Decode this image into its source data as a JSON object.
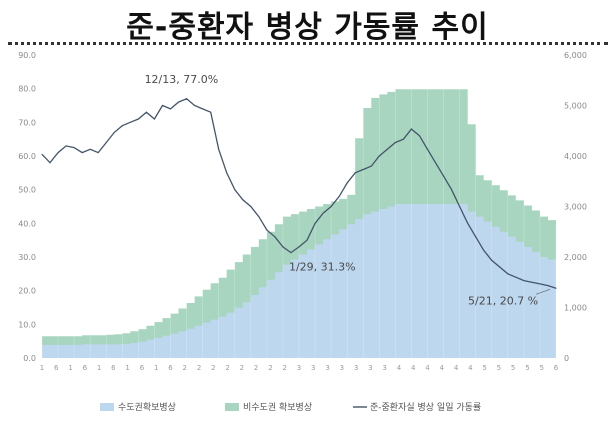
{
  "page": {
    "title": "준-중환자 병상 가동률 추이"
  },
  "chart_data": {
    "type": "area+line",
    "title": "준-중환자 병상 가동률 추이",
    "left_axis": {
      "min": 0,
      "max": 90,
      "ticks": [
        "0.0",
        "10.0",
        "20.0",
        "30.0",
        "40.0",
        "50.0",
        "60.0",
        "70.0",
        "80.0",
        "90.0"
      ]
    },
    "right_axis": {
      "min": 0,
      "max": 6000,
      "ticks": [
        "0",
        "1,000",
        "2,000",
        "3,000",
        "4,000",
        "5,000",
        "6,000"
      ]
    },
    "grid": false,
    "legend_position": "bottom",
    "legend": [
      "수도권확보병상",
      "비수도권 확보병상",
      "준-중환자실 병상 일일 가동률"
    ],
    "colors": {
      "capital_area": "#bdd7ee",
      "non_capital_area": "#a8d5bf",
      "utilization_line": "#44546a"
    },
    "series": [
      {
        "name": "수도권확보병상",
        "axis": "right",
        "kind": "stacked-area",
        "values": [
          260,
          260,
          260,
          260,
          260,
          270,
          270,
          270,
          270,
          270,
          280,
          300,
          320,
          360,
          400,
          440,
          480,
          530,
          580,
          640,
          700,
          760,
          820,
          900,
          1000,
          1100,
          1250,
          1400,
          1550,
          1700,
          1850,
          1950,
          2050,
          2150,
          2250,
          2350,
          2450,
          2550,
          2650,
          2750,
          2850,
          2900,
          2950,
          3000,
          3050,
          3050,
          3050,
          3050,
          3050,
          3050,
          3050,
          3050,
          3050,
          2900,
          2800,
          2700,
          2600,
          2500,
          2400,
          2300,
          2200,
          2100,
          2000,
          1950,
          1900
        ]
      },
      {
        "name": "비수도권 확보병상",
        "axis": "right",
        "kind": "stacked-area",
        "values": [
          170,
          170,
          170,
          170,
          170,
          180,
          180,
          180,
          190,
          200,
          210,
          230,
          250,
          280,
          310,
          350,
          400,
          450,
          510,
          580,
          650,
          720,
          770,
          850,
          900,
          950,
          950,
          950,
          950,
          950,
          950,
          900,
          850,
          800,
          750,
          700,
          650,
          600,
          580,
          1600,
          2100,
          2250,
          2270,
          2270,
          2270,
          2270,
          2270,
          2270,
          2270,
          2270,
          2270,
          2270,
          2270,
          1730,
          820,
          820,
          820,
          820,
          820,
          820,
          820,
          820,
          800,
          780,
          750
        ]
      },
      {
        "name": "준-중환자실 병상 일일 가동률",
        "axis": "left",
        "kind": "line",
        "values": [
          60.5,
          58,
          61,
          63,
          62.5,
          61,
          62,
          61,
          64,
          67,
          69,
          70,
          71,
          73,
          71,
          75,
          74,
          76,
          77,
          75,
          74,
          73,
          62,
          55,
          50,
          47,
          45,
          42,
          38,
          36,
          33,
          31.3,
          33,
          35,
          40,
          43,
          45,
          48,
          52,
          55,
          56,
          57,
          60,
          62,
          64,
          65,
          68,
          66,
          62,
          58,
          54,
          50,
          45,
          40,
          36,
          32,
          29,
          27,
          25,
          24,
          23,
          22.5,
          22,
          21.5,
          20.7
        ]
      }
    ],
    "annotations": [
      "12/13, 77.0%",
      "1/29, 31.3%",
      "5/21, 20.7 %"
    ],
    "x_tick_labels": [
      "1",
      "6",
      "1",
      "6",
      "1",
      "6",
      "1",
      "6",
      "1",
      "6",
      "2",
      "2",
      "2",
      "2",
      "2",
      "2",
      "2",
      "2",
      "3",
      "3",
      "3",
      "3",
      "3",
      "3",
      "3",
      "4",
      "4",
      "4",
      "4",
      "4",
      "4",
      "5",
      "5",
      "5",
      "5",
      "5",
      "6"
    ]
  }
}
